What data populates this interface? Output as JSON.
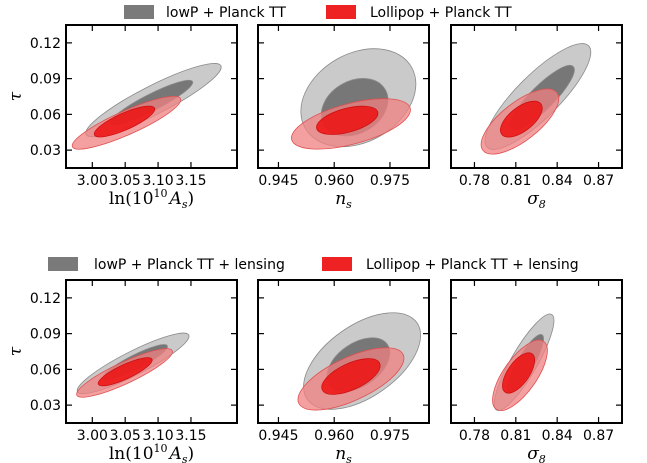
{
  "chart_data": [
    {
      "type": "contour",
      "legend": [
        {
          "label": "lowP + Planck TT",
          "color": "#7a7a7a"
        },
        {
          "label": "Lollipop + Planck TT",
          "color": "#ee2222"
        }
      ],
      "ylabel": "τ",
      "yticks": [
        0.03,
        0.06,
        0.09,
        0.12
      ],
      "panels": [
        {
          "xlabel": "ln(10^10 A_s)",
          "xlabel_main": "ln(10",
          "xlabel_sup": "10",
          "xlabel_mid": "A",
          "xlabel_sub": "s",
          "xlabel_end": ")",
          "xticks": [
            3.0,
            3.05,
            3.1,
            3.15
          ],
          "xtick_labels": [
            "3.00",
            "3.05",
            "3.10",
            "3.15"
          ],
          "xlim": [
            2.96,
            3.22
          ],
          "ylim": [
            0.015,
            0.135
          ],
          "series": [
            {
              "name": "lowP + Planck TT",
              "color": "#7a7a7a",
              "contours": [
                {
                  "level": "95%",
                  "cx": 3.093,
                  "cy": 0.072,
                  "rx": 0.115,
                  "ry": 0.012,
                  "angle": -27
                },
                {
                  "level": "68%",
                  "cx": 3.09,
                  "cy": 0.07,
                  "rx": 0.07,
                  "ry": 0.007,
                  "angle": -27
                }
              ]
            },
            {
              "name": "Lollipop + Planck TT",
              "color": "#ee2222",
              "contours": [
                {
                  "level": "95%",
                  "cx": 3.052,
                  "cy": 0.053,
                  "rx": 0.09,
                  "ry": 0.01,
                  "angle": -24
                },
                {
                  "level": "68%",
                  "cx": 3.049,
                  "cy": 0.054,
                  "rx": 0.05,
                  "ry": 0.007,
                  "angle": -24
                }
              ]
            }
          ]
        },
        {
          "xlabel": "n_s",
          "xlabel_main": "n",
          "xlabel_sub": "s",
          "xticks": [
            0.945,
            0.96,
            0.975
          ],
          "xtick_labels": [
            "0.945",
            "0.960",
            "0.975"
          ],
          "xlim": [
            0.9395,
            0.9855
          ],
          "ylim": [
            0.015,
            0.135
          ],
          "series": [
            {
              "name": "lowP + Planck TT",
              "color": "#7a7a7a",
              "contours": [
                {
                  "level": "95%",
                  "cx": 0.9665,
                  "cy": 0.074,
                  "rx": 0.0165,
                  "ry": 0.037,
                  "angle": -30
                },
                {
                  "level": "68%",
                  "cx": 0.9655,
                  "cy": 0.066,
                  "rx": 0.0095,
                  "ry": 0.022,
                  "angle": -30
                }
              ]
            },
            {
              "name": "Lollipop + Planck TT",
              "color": "#ee2222",
              "contours": [
                {
                  "level": "95%",
                  "cx": 0.9645,
                  "cy": 0.052,
                  "rx": 0.0165,
                  "ry": 0.017,
                  "angle": -15
                },
                {
                  "level": "68%",
                  "cx": 0.9635,
                  "cy": 0.055,
                  "rx": 0.0085,
                  "ry": 0.01,
                  "angle": -15
                }
              ]
            }
          ]
        },
        {
          "xlabel": "σ_8",
          "xlabel_main": "σ",
          "xlabel_sub": "8",
          "xticks": [
            0.78,
            0.81,
            0.84,
            0.87
          ],
          "xtick_labels": [
            "0.78",
            "0.81",
            "0.84",
            "0.87"
          ],
          "xlim": [
            0.763,
            0.887
          ],
          "ylim": [
            0.015,
            0.135
          ],
          "series": [
            {
              "name": "lowP + Planck TT",
              "color": "#7a7a7a",
              "contours": [
                {
                  "level": "95%",
                  "cx": 0.826,
                  "cy": 0.075,
                  "rx": 0.052,
                  "ry": 0.018,
                  "angle": -45
                },
                {
                  "level": "68%",
                  "cx": 0.829,
                  "cy": 0.074,
                  "rx": 0.032,
                  "ry": 0.01,
                  "angle": -45
                }
              ]
            },
            {
              "name": "Lollipop + Planck TT",
              "color": "#ee2222",
              "contours": [
                {
                  "level": "95%",
                  "cx": 0.813,
                  "cy": 0.054,
                  "rx": 0.034,
                  "ry": 0.016,
                  "angle": -38
                },
                {
                  "level": "68%",
                  "cx": 0.814,
                  "cy": 0.056,
                  "rx": 0.018,
                  "ry": 0.01,
                  "angle": -38
                }
              ]
            }
          ]
        }
      ]
    },
    {
      "type": "contour",
      "legend": [
        {
          "label": "lowP + Planck TT + lensing",
          "color": "#7a7a7a"
        },
        {
          "label": "Lollipop + Planck TT + lensing",
          "color": "#ee2222"
        }
      ],
      "ylabel": "τ",
      "yticks": [
        0.03,
        0.06,
        0.09,
        0.12
      ],
      "panels": [
        {
          "xlabel": "ln(10^10 A_s)",
          "xlabel_main": "ln(10",
          "xlabel_sup": "10",
          "xlabel_mid": "A",
          "xlabel_sub": "s",
          "xlabel_end": ")",
          "xticks": [
            3.0,
            3.05,
            3.1,
            3.15
          ],
          "xtick_labels": [
            "3.00",
            "3.05",
            "3.10",
            "3.15"
          ],
          "xlim": [
            2.96,
            3.22
          ],
          "ylim": [
            0.015,
            0.135
          ],
          "series": [
            {
              "name": "lowP + Planck TT + lensing",
              "color": "#7a7a7a",
              "contours": [
                {
                  "level": "95%",
                  "cx": 3.062,
                  "cy": 0.065,
                  "rx": 0.095,
                  "ry": 0.01,
                  "angle": -27
                },
                {
                  "level": "68%",
                  "cx": 3.065,
                  "cy": 0.066,
                  "rx": 0.055,
                  "ry": 0.006,
                  "angle": -27
                }
              ]
            },
            {
              "name": "Lollipop + Planck TT + lensing",
              "color": "#ee2222",
              "contours": [
                {
                  "level": "95%",
                  "cx": 3.049,
                  "cy": 0.057,
                  "rx": 0.08,
                  "ry": 0.009,
                  "angle": -25
                },
                {
                  "level": "68%",
                  "cx": 3.05,
                  "cy": 0.058,
                  "rx": 0.045,
                  "ry": 0.006,
                  "angle": -25
                }
              ]
            }
          ]
        },
        {
          "xlabel": "n_s",
          "xlabel_main": "n",
          "xlabel_sub": "s",
          "xticks": [
            0.945,
            0.96,
            0.975
          ],
          "xtick_labels": [
            "0.945",
            "0.960",
            "0.975"
          ],
          "xlim": [
            0.9395,
            0.9855
          ],
          "ylim": [
            0.015,
            0.135
          ],
          "series": [
            {
              "name": "lowP + Planck TT + lensing",
              "color": "#7a7a7a",
              "contours": [
                {
                  "level": "95%",
                  "cx": 0.9675,
                  "cy": 0.067,
                  "rx": 0.018,
                  "ry": 0.03,
                  "angle": -35
                },
                {
                  "level": "68%",
                  "cx": 0.9665,
                  "cy": 0.064,
                  "rx": 0.0095,
                  "ry": 0.018,
                  "angle": -35
                }
              ]
            },
            {
              "name": "Lollipop + Planck TT + lensing",
              "color": "#ee2222",
              "contours": [
                {
                  "level": "95%",
                  "cx": 0.9645,
                  "cy": 0.052,
                  "rx": 0.0155,
                  "ry": 0.018,
                  "angle": -25
                },
                {
                  "level": "68%",
                  "cx": 0.9645,
                  "cy": 0.054,
                  "rx": 0.0085,
                  "ry": 0.011,
                  "angle": -25
                }
              ]
            }
          ]
        },
        {
          "xlabel": "σ_8",
          "xlabel_main": "σ",
          "xlabel_sub": "8",
          "xticks": [
            0.78,
            0.81,
            0.84,
            0.87
          ],
          "xtick_labels": [
            "0.78",
            "0.81",
            "0.84",
            "0.87"
          ],
          "xlim": [
            0.763,
            0.887
          ],
          "ylim": [
            0.015,
            0.135
          ],
          "series": [
            {
              "name": "lowP + Planck TT + lensing",
              "color": "#7a7a7a",
              "contours": [
                {
                  "level": "95%",
                  "cx": 0.816,
                  "cy": 0.066,
                  "rx": 0.04,
                  "ry": 0.011,
                  "angle": -60
                },
                {
                  "level": "68%",
                  "cx": 0.817,
                  "cy": 0.065,
                  "rx": 0.024,
                  "ry": 0.007,
                  "angle": -60
                }
              ]
            },
            {
              "name": "Lollipop + Planck TT + lensing",
              "color": "#ee2222",
              "contours": [
                {
                  "level": "95%",
                  "cx": 0.813,
                  "cy": 0.055,
                  "rx": 0.03,
                  "ry": 0.014,
                  "angle": -55
                },
                {
                  "level": "68%",
                  "cx": 0.812,
                  "cy": 0.057,
                  "rx": 0.017,
                  "ry": 0.009,
                  "angle": -55
                }
              ]
            }
          ]
        }
      ]
    }
  ]
}
